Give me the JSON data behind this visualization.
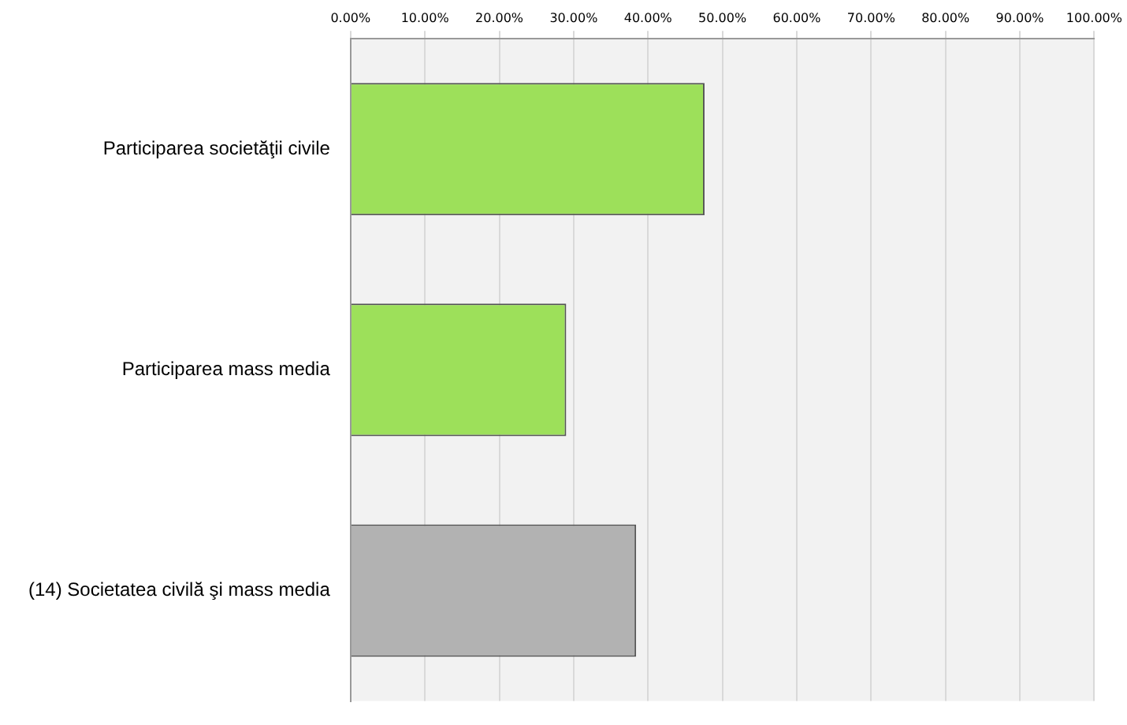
{
  "chart_data": {
    "type": "bar",
    "orientation": "horizontal",
    "categories": [
      "Participarea societăţii civile",
      "Participarea mass media",
      "(14) Societatea civilă şi mass media"
    ],
    "values": [
      47.6,
      29.0,
      38.4
    ],
    "colors": [
      "#9de05a",
      "#9de05a",
      "#b2b2b2"
    ],
    "xlim": [
      0,
      100
    ],
    "xticks": [
      {
        "value": 0,
        "label": "0.00%"
      },
      {
        "value": 10,
        "label": "10.00%"
      },
      {
        "value": 20,
        "label": "20.00%"
      },
      {
        "value": 30,
        "label": "30.00%"
      },
      {
        "value": 40,
        "label": "40.00%"
      },
      {
        "value": 50,
        "label": "50.00%"
      },
      {
        "value": 60,
        "label": "60.00%"
      },
      {
        "value": 70,
        "label": "70.00%"
      },
      {
        "value": 80,
        "label": "80.00%"
      },
      {
        "value": 90,
        "label": "90.00%"
      },
      {
        "value": 100,
        "label": "100.00%"
      }
    ],
    "grid": "x",
    "legend": false
  }
}
